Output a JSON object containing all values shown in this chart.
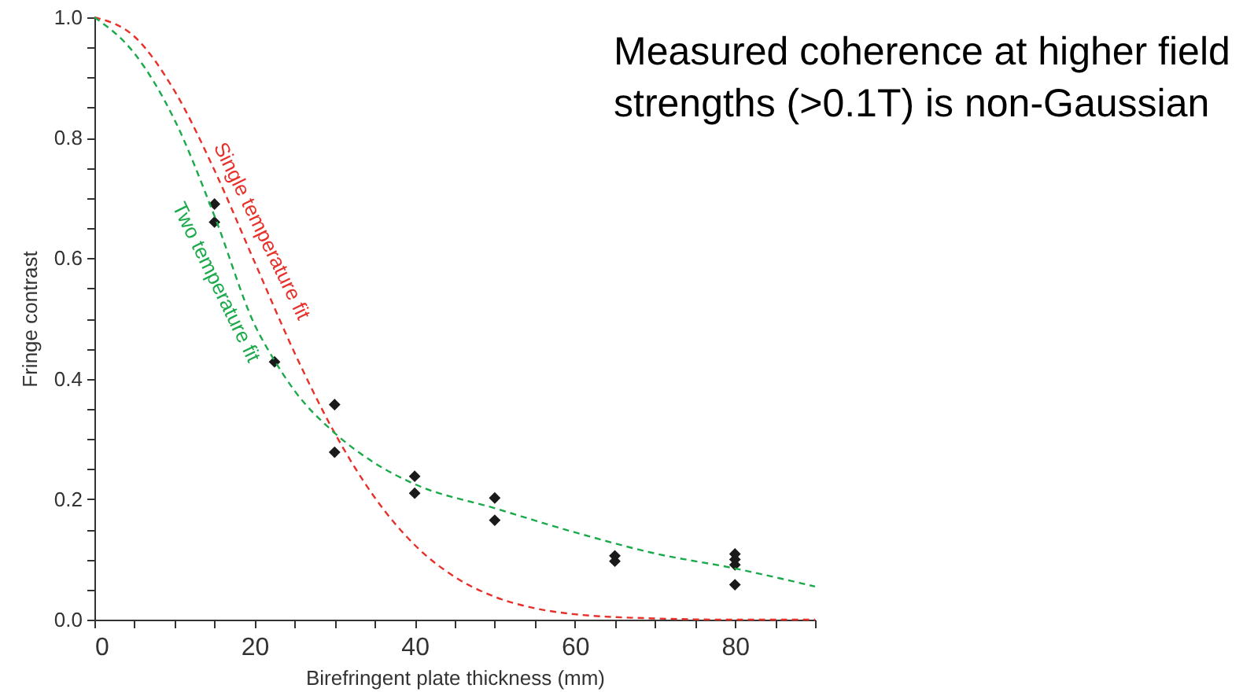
{
  "chart_data": {
    "type": "scatter",
    "title": "Measured coherence at higher field strengths (>0.1T) is non-Gaussian",
    "xlabel": "Birefringent plate thickness (mm)",
    "ylabel": "Fringe contrast",
    "xlim": [
      0,
      90
    ],
    "ylim": [
      0,
      1
    ],
    "xticks": [
      0,
      {
        "value": 5,
        "label": null
      },
      {
        "value": 10,
        "label": null
      },
      {
        "value": 15,
        "label": null
      },
      20,
      {
        "value": 25,
        "label": null
      },
      {
        "value": 30,
        "label": null
      },
      {
        "value": 35,
        "label": null
      },
      40,
      {
        "value": 45,
        "label": null
      },
      {
        "value": 50,
        "label": null
      },
      {
        "value": 55,
        "label": null
      },
      60,
      {
        "value": 65,
        "label": null
      },
      {
        "value": 70,
        "label": null
      },
      {
        "value": 75,
        "label": null
      },
      80,
      {
        "value": 85,
        "label": null
      },
      {
        "value": 90,
        "label": null
      }
    ],
    "yticks": [
      {
        "value": 0,
        "label": "0.0"
      },
      {
        "value": 0.05,
        "label": null
      },
      {
        "value": 0.1,
        "label": null
      },
      {
        "value": 0.15,
        "label": null
      },
      0.2,
      {
        "value": 0.25,
        "label": null
      },
      {
        "value": 0.3,
        "label": null
      },
      {
        "value": 0.35,
        "label": null
      },
      0.4,
      {
        "value": 0.45,
        "label": null
      },
      {
        "value": 0.5,
        "label": null
      },
      {
        "value": 0.55,
        "label": null
      },
      0.6,
      {
        "value": 0.65,
        "label": null
      },
      {
        "value": 0.7,
        "label": null
      },
      {
        "value": 0.75,
        "label": null
      },
      0.8,
      {
        "value": 0.85,
        "label": null
      },
      {
        "value": 0.9,
        "label": null
      },
      {
        "value": 0.95,
        "label": null
      },
      {
        "value": 1,
        "label": "1.0"
      }
    ],
    "grid": false,
    "series": [
      {
        "color": "#1a1a1a",
        "marker": "diamond",
        "x": [
          15,
          15,
          22.5,
          30,
          30,
          40,
          40,
          50,
          50,
          65,
          65,
          80,
          80,
          80,
          80
        ],
        "values": [
          0.69,
          0.66,
          0.428,
          0.357,
          0.278,
          0.238,
          0.21,
          0.202,
          0.165,
          0.106,
          0.097,
          0.109,
          0.1,
          0.091,
          0.058
        ]
      },
      {
        "type": "line",
        "color": "#e8302a",
        "line_style": "dashed",
        "x": [
          0,
          5,
          10,
          15,
          20,
          25,
          30,
          35,
          40,
          45,
          50,
          55,
          60,
          70,
          80,
          90
        ],
        "values": [
          1,
          0.968,
          0.878,
          0.746,
          0.594,
          0.443,
          0.31,
          0.203,
          0.124,
          0.071,
          0.038,
          0.019,
          0.009,
          0.002,
          0,
          0
        ]
      },
      {
        "type": "line",
        "color": "#1aaa4a",
        "line_style": "dashed",
        "x": [
          0,
          5,
          10,
          15,
          20,
          22.5,
          25,
          30,
          35,
          40,
          50,
          60,
          70,
          80,
          90
        ],
        "values": [
          1,
          0.94,
          0.83,
          0.67,
          0.49,
          0.43,
          0.38,
          0.31,
          0.26,
          0.225,
          0.185,
          0.145,
          0.11,
          0.085,
          0.055
        ]
      }
    ],
    "annotations": [
      "Single temperature fit",
      "Two temperature fit"
    ]
  }
}
